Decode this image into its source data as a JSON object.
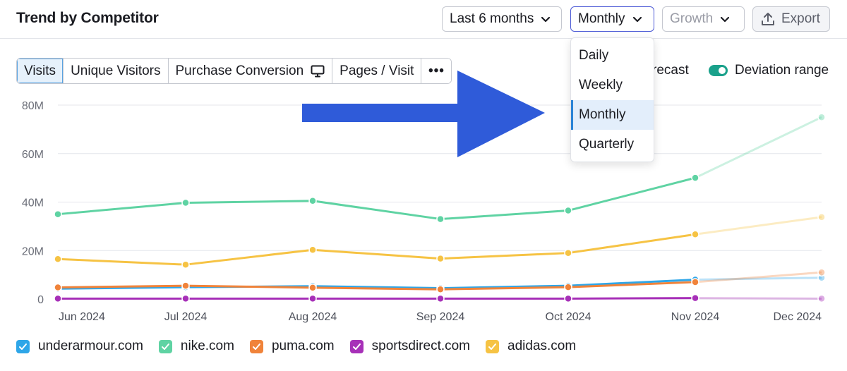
{
  "header": {
    "title": "Trend by Competitor"
  },
  "controls": {
    "period": "Last 6 months",
    "granularity": "Monthly",
    "growth": "Growth",
    "export": "Export"
  },
  "tabs": [
    {
      "label": "Visits",
      "active": true
    },
    {
      "label": "Unique Visitors"
    },
    {
      "label": "Purchase Conversion"
    },
    {
      "label": "Pages / Visit"
    },
    {
      "label": "•••"
    }
  ],
  "options": {
    "forecast_label": "recast",
    "deviation_label": "Deviation range",
    "deviation_on": true
  },
  "dropdown": {
    "items": [
      "Daily",
      "Weekly",
      "Monthly",
      "Quarterly"
    ],
    "selected": "Monthly"
  },
  "chart_data": {
    "type": "line",
    "x": [
      "Jun 2024",
      "Jul 2024",
      "Aug 2024",
      "Sep 2024",
      "Oct 2024",
      "Nov 2024",
      "Dec 2024"
    ],
    "y_ticks": [
      "80M",
      "60M",
      "40M",
      "20M",
      "0"
    ],
    "ylim": [
      0,
      80
    ],
    "forecast_from_index": 5,
    "series": [
      {
        "name": "nike.com",
        "color": "#5fd3a3",
        "values": [
          35,
          39.7,
          40.5,
          33,
          36.5,
          50,
          75
        ]
      },
      {
        "name": "adidas.com",
        "color": "#f6c344",
        "values": [
          16.5,
          14.2,
          20.3,
          16.7,
          19,
          26.7,
          33.8
        ]
      },
      {
        "name": "underarmour.com",
        "color": "#2ea6e8",
        "values": [
          4.3,
          4.9,
          5.3,
          4.5,
          5.5,
          8,
          8.8
        ]
      },
      {
        "name": "puma.com",
        "color": "#f0833a",
        "values": [
          4.8,
          5.5,
          4.7,
          4,
          4.9,
          7,
          11
        ]
      },
      {
        "name": "sportsdirect.com",
        "color": "#a730b8",
        "values": [
          0.2,
          0.2,
          0.2,
          0.2,
          0.2,
          0.4,
          0.2
        ]
      }
    ]
  },
  "legend": [
    {
      "label": "underarmour.com",
      "color": "#2ea6e8"
    },
    {
      "label": "nike.com",
      "color": "#5fd3a3"
    },
    {
      "label": "puma.com",
      "color": "#f0833a"
    },
    {
      "label": "sportsdirect.com",
      "color": "#a730b8"
    },
    {
      "label": "adidas.com",
      "color": "#f6c344"
    }
  ],
  "colors": {
    "arrow": "#2f5bd9",
    "accent": "#2a83d6",
    "grid": "#e4e6eb"
  },
  "icons": {
    "chevron": "chevron-down-icon",
    "export": "upload-icon",
    "monitor": "monitor-icon",
    "check": "check-icon"
  }
}
